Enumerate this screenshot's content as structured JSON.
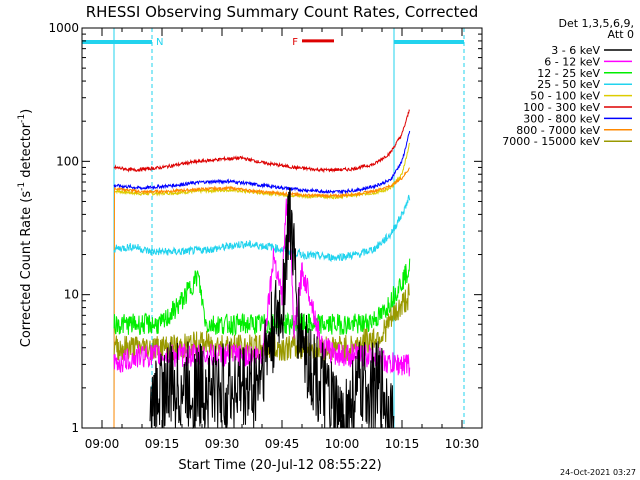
{
  "chart_data": {
    "type": "line",
    "title": "RHESSI Observing Summary Count Rates, Corrected",
    "xlabel": "Start Time (20-Jul-12 08:55:22)",
    "ylabel_main": "Corrected Count Rate (s",
    "ylabel_sup1": "-1",
    "ylabel_mid": " detector",
    "ylabel_sup2": "-1",
    "ylabel_end": ")",
    "yscale": "log",
    "ylim": [
      1,
      1000
    ],
    "xlim_min": [
      -5,
      95
    ],
    "yticks": [
      {
        "value": 1,
        "label": "1"
      },
      {
        "value": 10,
        "label": "10"
      },
      {
        "value": 100,
        "label": "100"
      },
      {
        "value": 1000,
        "label": "1000"
      }
    ],
    "xticks": [
      {
        "value": 0,
        "label": "09:00"
      },
      {
        "value": 15,
        "label": "09:15"
      },
      {
        "value": 30,
        "label": "09:30"
      },
      {
        "value": 45,
        "label": "09:45"
      },
      {
        "value": 60,
        "label": "10:00"
      },
      {
        "value": 75,
        "label": "10:15"
      },
      {
        "value": 90,
        "label": "10:30"
      }
    ],
    "legend_header": [
      "Det 1,3,5,6,9,",
      "Att 0"
    ],
    "footer_date": "24-Oct-2021 03:27",
    "flags": {
      "night": {
        "label": "N",
        "start": -5,
        "end": 12.5,
        "color": "#22d3ee"
      },
      "night2": {
        "label": "",
        "start": 73,
        "end": 90.5,
        "color": "#22d3ee"
      },
      "flare": {
        "label": "F",
        "start": 50,
        "end": 58,
        "level": 800,
        "color": "#dd0000"
      }
    },
    "data_window": {
      "start": 3,
      "end": 77
    },
    "vlines": [
      {
        "x": 3,
        "color": "#22d3ee"
      },
      {
        "x": 12.5,
        "color": "#22d3ee",
        "dashed": true
      },
      {
        "x": 73,
        "color": "#22d3ee"
      },
      {
        "x": 90.5,
        "color": "#22d3ee",
        "dashed": true
      }
    ],
    "series": [
      {
        "name": "3 - 6 keV",
        "color": "#000000",
        "points": [
          [
            12,
            1
          ],
          [
            14,
            2
          ],
          [
            20,
            2
          ],
          [
            30,
            2
          ],
          [
            38,
            2
          ],
          [
            45,
            8
          ],
          [
            47,
            45
          ],
          [
            49,
            6
          ],
          [
            52,
            3
          ],
          [
            55,
            2
          ],
          [
            60,
            1
          ],
          [
            64,
            2
          ],
          [
            70,
            2
          ],
          [
            73,
            1
          ]
        ]
      },
      {
        "name": "6 - 12 keV",
        "color": "#ff00ff",
        "points": [
          [
            3,
            3
          ],
          [
            10,
            3.5
          ],
          [
            18,
            3.5
          ],
          [
            25,
            3.5
          ],
          [
            32,
            3.5
          ],
          [
            40,
            3.5
          ],
          [
            43,
            20
          ],
          [
            45,
            10
          ],
          [
            46,
            48
          ],
          [
            47,
            30
          ],
          [
            48,
            5
          ],
          [
            50,
            15
          ],
          [
            52,
            10
          ],
          [
            55,
            4
          ],
          [
            60,
            3.5
          ],
          [
            68,
            3.5
          ],
          [
            72,
            3
          ],
          [
            77,
            3
          ]
        ]
      },
      {
        "name": "12 - 25 keV",
        "color": "#00ee00",
        "points": [
          [
            3,
            6
          ],
          [
            12,
            6
          ],
          [
            15,
            6
          ],
          [
            20,
            9
          ],
          [
            24,
            14
          ],
          [
            26,
            6
          ],
          [
            35,
            6
          ],
          [
            50,
            6
          ],
          [
            62,
            6
          ],
          [
            65,
            6
          ],
          [
            70,
            7
          ],
          [
            73,
            10
          ],
          [
            77,
            16
          ]
        ]
      },
      {
        "name": "25 - 50 keV",
        "color": "#22d3ee",
        "points": [
          [
            3,
            22
          ],
          [
            8,
            23
          ],
          [
            12,
            21
          ],
          [
            20,
            21
          ],
          [
            28,
            22
          ],
          [
            35,
            24
          ],
          [
            42,
            23
          ],
          [
            50,
            20
          ],
          [
            58,
            19
          ],
          [
            64,
            20
          ],
          [
            68,
            22
          ],
          [
            72,
            28
          ],
          [
            75,
            40
          ],
          [
            77,
            55
          ]
        ]
      },
      {
        "name": "50 - 100 keV",
        "color": "#ddcc00",
        "points": [
          [
            3,
            60
          ],
          [
            10,
            57
          ],
          [
            18,
            58
          ],
          [
            25,
            60
          ],
          [
            32,
            61
          ],
          [
            40,
            58
          ],
          [
            50,
            55
          ],
          [
            58,
            54
          ],
          [
            64,
            56
          ],
          [
            68,
            58
          ],
          [
            72,
            62
          ],
          [
            75,
            80
          ],
          [
            77,
            140
          ]
        ]
      },
      {
        "name": "100 - 300 keV",
        "color": "#dd0000",
        "points": [
          [
            3,
            90
          ],
          [
            8,
            86
          ],
          [
            15,
            90
          ],
          [
            22,
            98
          ],
          [
            30,
            104
          ],
          [
            35,
            106
          ],
          [
            40,
            98
          ],
          [
            48,
            90
          ],
          [
            55,
            86
          ],
          [
            62,
            87
          ],
          [
            68,
            95
          ],
          [
            72,
            115
          ],
          [
            75,
            160
          ],
          [
            77,
            250
          ]
        ]
      },
      {
        "name": "300 - 800 keV",
        "color": "#0000ff",
        "points": [
          [
            3,
            66
          ],
          [
            10,
            63
          ],
          [
            18,
            66
          ],
          [
            25,
            70
          ],
          [
            32,
            71
          ],
          [
            40,
            66
          ],
          [
            50,
            61
          ],
          [
            58,
            59
          ],
          [
            64,
            61
          ],
          [
            68,
            65
          ],
          [
            72,
            72
          ],
          [
            75,
            100
          ],
          [
            77,
            170
          ]
        ]
      },
      {
        "name": "800 - 7000 keV",
        "color": "#ff8800",
        "points": [
          [
            3,
            1
          ],
          [
            3,
            63
          ],
          [
            10,
            59
          ],
          [
            18,
            60
          ],
          [
            25,
            62
          ],
          [
            32,
            63
          ],
          [
            40,
            59
          ],
          [
            50,
            56
          ],
          [
            58,
            55
          ],
          [
            64,
            57
          ],
          [
            68,
            60
          ],
          [
            72,
            65
          ],
          [
            75,
            75
          ],
          [
            77,
            90
          ],
          [
            77,
            6
          ]
        ]
      },
      {
        "name": "7000 - 15000 keV",
        "color": "#999900",
        "points": [
          [
            3,
            4
          ],
          [
            12,
            4
          ],
          [
            18,
            4
          ],
          [
            25,
            4.3
          ],
          [
            35,
            4
          ],
          [
            45,
            4
          ],
          [
            55,
            4
          ],
          [
            62,
            4
          ],
          [
            66,
            4.5
          ],
          [
            70,
            5
          ],
          [
            73,
            7
          ],
          [
            77,
            10
          ]
        ]
      }
    ]
  }
}
